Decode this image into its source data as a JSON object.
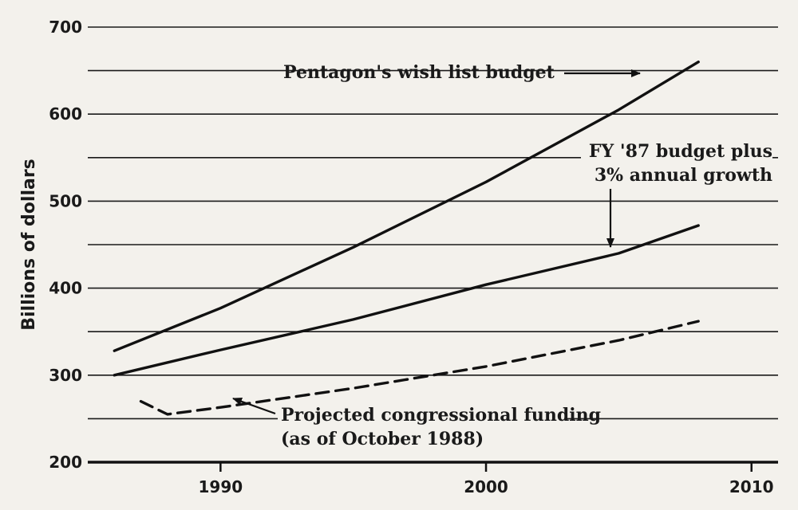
{
  "chart_data": {
    "type": "line",
    "title": "",
    "ylabel": "Billions of dollars",
    "xlabel": "",
    "xlim": [
      1985,
      2011
    ],
    "ylim": [
      200,
      700
    ],
    "yticks": [
      200,
      300,
      400,
      500,
      600,
      700
    ],
    "xticks": [
      1990,
      2000,
      2010
    ],
    "grid": true,
    "series": [
      {
        "name": "Pentagon's wish list budget",
        "style": "solid",
        "x": [
          1986,
          1990,
          1995,
          2000,
          2005,
          2008
        ],
        "y": [
          328,
          377,
          447,
          522,
          605,
          660
        ]
      },
      {
        "name": "FY '87 budget plus 3% annual growth",
        "style": "solid",
        "x": [
          1986,
          1990,
          1995,
          2000,
          2005,
          2008
        ],
        "y": [
          300,
          329,
          364,
          404,
          440,
          472
        ]
      },
      {
        "name": "Projected congressional funding (as of October 1988)",
        "style": "dashed",
        "x": [
          1987,
          1988,
          1990,
          1995,
          2000,
          2005,
          2008
        ],
        "y": [
          270,
          255,
          263,
          285,
          310,
          340,
          362
        ]
      }
    ],
    "annotations": [
      {
        "text": "Pentagon's wish list budget"
      },
      {
        "text_lines": [
          "FY '87 budget plus",
          "3% annual growth"
        ]
      },
      {
        "text_lines": [
          "Projected congressional funding",
          "(as of October 1988)"
        ]
      }
    ]
  }
}
